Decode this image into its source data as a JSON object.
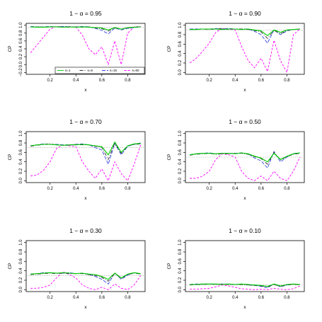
{
  "chart_data": [
    {
      "type": "line",
      "title": "1 − α = 0.95",
      "xlabel": "x",
      "ylabel": "CP",
      "xlim": [
        0.05,
        0.9
      ],
      "ylim": [
        -0.2,
        1.0
      ],
      "xticks": [
        "0.2",
        "0.4",
        "0.6",
        "0.8"
      ],
      "yticks": [
        "−0.2",
        "0.0",
        "0.2",
        "0.4",
        "0.6",
        "0.8",
        "1.0"
      ],
      "nominal": 0.95,
      "x": [
        0.05,
        0.1,
        0.15,
        0.2,
        0.25,
        0.3,
        0.35,
        0.4,
        0.45,
        0.5,
        0.55,
        0.6,
        0.65,
        0.7,
        0.75,
        0.8,
        0.85,
        0.9
      ],
      "series": [
        {
          "name": "s=1",
          "color": "#00cc00",
          "dash": "",
          "values": [
            0.96,
            0.95,
            0.95,
            0.96,
            0.96,
            0.95,
            0.96,
            0.95,
            0.96,
            0.95,
            0.94,
            0.93,
            0.88,
            0.94,
            0.9,
            0.94,
            0.95,
            0.96
          ]
        },
        {
          "name": "s=6",
          "color": "#333333",
          "dash": "5,2,1,2",
          "values": [
            0.96,
            0.96,
            0.95,
            0.96,
            0.96,
            0.96,
            0.95,
            0.96,
            0.95,
            0.96,
            0.93,
            0.91,
            0.85,
            0.93,
            0.9,
            0.93,
            0.95,
            0.96
          ]
        },
        {
          "name": "s=15",
          "color": "#3344dd",
          "dash": "5,2",
          "values": [
            0.97,
            0.96,
            0.96,
            0.97,
            0.96,
            0.97,
            0.96,
            0.96,
            0.97,
            0.96,
            0.92,
            0.87,
            0.78,
            0.93,
            0.88,
            0.92,
            0.94,
            0.96
          ]
        },
        {
          "name": "s=60",
          "color": "#ff00ff",
          "dash": "3,2",
          "values": [
            0.3,
            0.5,
            0.7,
            0.9,
            0.97,
            0.96,
            0.97,
            0.95,
            0.75,
            0.4,
            0.25,
            0.45,
            0.0,
            0.6,
            0.0,
            0.8,
            0.96,
            0.97
          ]
        }
      ],
      "legend": "bottom-right"
    },
    {
      "type": "line",
      "title": "1 − α = 0.90",
      "xlabel": "x",
      "ylabel": "CP",
      "xlim": [
        0.05,
        0.9
      ],
      "ylim": [
        0.0,
        1.0
      ],
      "xticks": [
        "0.2",
        "0.4",
        "0.6",
        "0.8"
      ],
      "yticks": [
        "0.0",
        "0.2",
        "0.4",
        "0.6",
        "0.8",
        "1.0"
      ],
      "nominal": 0.9,
      "x": [
        0.05,
        0.1,
        0.15,
        0.2,
        0.25,
        0.3,
        0.35,
        0.4,
        0.45,
        0.5,
        0.55,
        0.6,
        0.65,
        0.7,
        0.75,
        0.8,
        0.85,
        0.9
      ],
      "series": [
        {
          "name": "s=1",
          "color": "#00cc00",
          "dash": "",
          "values": [
            0.91,
            0.91,
            0.92,
            0.92,
            0.92,
            0.91,
            0.92,
            0.92,
            0.91,
            0.92,
            0.9,
            0.88,
            0.78,
            0.9,
            0.85,
            0.9,
            0.91,
            0.92
          ]
        },
        {
          "name": "s=6",
          "color": "#333333",
          "dash": "5,2,1,2",
          "values": [
            0.91,
            0.91,
            0.92,
            0.91,
            0.92,
            0.93,
            0.91,
            0.92,
            0.92,
            0.91,
            0.89,
            0.86,
            0.72,
            0.89,
            0.82,
            0.89,
            0.91,
            0.92
          ]
        },
        {
          "name": "s=15",
          "color": "#3344dd",
          "dash": "5,2",
          "values": [
            0.92,
            0.92,
            0.92,
            0.92,
            0.93,
            0.92,
            0.93,
            0.92,
            0.92,
            0.92,
            0.87,
            0.8,
            0.62,
            0.9,
            0.8,
            0.88,
            0.91,
            0.92
          ]
        },
        {
          "name": "s=60",
          "color": "#ff00ff",
          "dash": "3,2",
          "values": [
            0.2,
            0.3,
            0.45,
            0.62,
            0.85,
            0.93,
            0.92,
            0.9,
            0.55,
            0.25,
            0.1,
            0.3,
            0.02,
            0.68,
            0.25,
            0.0,
            0.8,
            0.92
          ]
        }
      ]
    },
    {
      "type": "line",
      "title": "1 − α = 0.70",
      "xlabel": "x",
      "ylabel": "CP",
      "xlim": [
        0.05,
        0.9
      ],
      "ylim": [
        0.0,
        1.0
      ],
      "xticks": [
        "0.2",
        "0.4",
        "0.6",
        "0.8"
      ],
      "yticks": [
        "0.0",
        "0.2",
        "0.4",
        "0.6",
        "0.8",
        "1.0"
      ],
      "nominal": 0.7,
      "x": [
        0.05,
        0.1,
        0.15,
        0.2,
        0.25,
        0.3,
        0.35,
        0.4,
        0.45,
        0.5,
        0.55,
        0.6,
        0.65,
        0.7,
        0.75,
        0.8,
        0.85,
        0.9
      ],
      "series": [
        {
          "name": "s=1",
          "color": "#00cc00",
          "dash": "",
          "values": [
            0.74,
            0.76,
            0.77,
            0.77,
            0.76,
            0.75,
            0.76,
            0.76,
            0.77,
            0.76,
            0.74,
            0.72,
            0.55,
            0.82,
            0.6,
            0.74,
            0.78,
            0.79
          ]
        },
        {
          "name": "s=6",
          "color": "#333333",
          "dash": "5,2,1,2",
          "values": [
            0.73,
            0.75,
            0.77,
            0.78,
            0.76,
            0.75,
            0.75,
            0.77,
            0.76,
            0.76,
            0.73,
            0.71,
            0.45,
            0.8,
            0.58,
            0.74,
            0.77,
            0.78
          ]
        },
        {
          "name": "s=15",
          "color": "#3344dd",
          "dash": "5,2",
          "values": [
            0.74,
            0.76,
            0.78,
            0.77,
            0.77,
            0.76,
            0.76,
            0.77,
            0.78,
            0.76,
            0.7,
            0.65,
            0.35,
            0.79,
            0.55,
            0.73,
            0.77,
            0.8
          ]
        },
        {
          "name": "s=60",
          "color": "#ff00ff",
          "dash": "3,2",
          "values": [
            0.1,
            0.12,
            0.22,
            0.4,
            0.68,
            0.76,
            0.74,
            0.72,
            0.4,
            0.2,
            0.05,
            0.25,
            0.0,
            0.4,
            0.15,
            0.0,
            0.35,
            0.76
          ]
        }
      ]
    },
    {
      "type": "line",
      "title": "1 − α = 0.50",
      "xlabel": "x",
      "ylabel": "CP",
      "xlim": [
        0.05,
        0.9
      ],
      "ylim": [
        0.0,
        1.0
      ],
      "xticks": [
        "0.2",
        "0.4",
        "0.6",
        "0.8"
      ],
      "yticks": [
        "0.0",
        "0.2",
        "0.4",
        "0.6",
        "0.8",
        "1.0"
      ],
      "nominal": 0.5,
      "x": [
        0.05,
        0.1,
        0.15,
        0.2,
        0.25,
        0.3,
        0.35,
        0.4,
        0.45,
        0.5,
        0.55,
        0.6,
        0.65,
        0.7,
        0.75,
        0.8,
        0.85,
        0.9
      ],
      "series": [
        {
          "name": "s=1",
          "color": "#00cc00",
          "dash": "",
          "values": [
            0.55,
            0.57,
            0.58,
            0.58,
            0.57,
            0.58,
            0.58,
            0.57,
            0.59,
            0.57,
            0.52,
            0.48,
            0.4,
            0.58,
            0.45,
            0.52,
            0.57,
            0.59
          ]
        },
        {
          "name": "s=6",
          "color": "#333333",
          "dash": "5,2,1,2",
          "values": [
            0.54,
            0.56,
            0.57,
            0.58,
            0.56,
            0.57,
            0.57,
            0.58,
            0.58,
            0.56,
            0.51,
            0.47,
            0.35,
            0.6,
            0.44,
            0.51,
            0.56,
            0.58
          ]
        },
        {
          "name": "s=15",
          "color": "#3344dd",
          "dash": "5,2",
          "values": [
            0.55,
            0.57,
            0.58,
            0.59,
            0.57,
            0.58,
            0.58,
            0.58,
            0.59,
            0.57,
            0.48,
            0.42,
            0.27,
            0.62,
            0.4,
            0.5,
            0.58,
            0.59
          ]
        },
        {
          "name": "s=60",
          "color": "#ff00ff",
          "dash": "3,2",
          "values": [
            0.05,
            0.05,
            0.1,
            0.2,
            0.45,
            0.57,
            0.55,
            0.5,
            0.2,
            0.05,
            0.0,
            0.1,
            0.0,
            0.2,
            0.05,
            0.0,
            0.2,
            0.5
          ]
        }
      ]
    },
    {
      "type": "line",
      "title": "1 − α = 0.30",
      "xlabel": "x",
      "ylabel": "CP",
      "xlim": [
        0.05,
        0.9
      ],
      "ylim": [
        0.0,
        1.0
      ],
      "xticks": [
        "0.2",
        "0.4",
        "0.6",
        "0.8"
      ],
      "yticks": [
        "0.0",
        "0.2",
        "0.4",
        "0.6",
        "0.8",
        "1.0"
      ],
      "nominal": 0.3,
      "x": [
        0.05,
        0.1,
        0.15,
        0.2,
        0.25,
        0.3,
        0.35,
        0.4,
        0.45,
        0.5,
        0.55,
        0.6,
        0.65,
        0.7,
        0.75,
        0.8,
        0.85,
        0.9
      ],
      "series": [
        {
          "name": "s=1",
          "color": "#00cc00",
          "dash": "",
          "values": [
            0.33,
            0.34,
            0.35,
            0.36,
            0.35,
            0.36,
            0.35,
            0.34,
            0.35,
            0.33,
            0.32,
            0.28,
            0.22,
            0.35,
            0.25,
            0.33,
            0.36,
            0.34
          ]
        },
        {
          "name": "s=6",
          "color": "#333333",
          "dash": "5,2,1,2",
          "values": [
            0.32,
            0.33,
            0.34,
            0.35,
            0.34,
            0.35,
            0.34,
            0.34,
            0.34,
            0.32,
            0.3,
            0.26,
            0.18,
            0.34,
            0.24,
            0.32,
            0.35,
            0.33
          ]
        },
        {
          "name": "s=15",
          "color": "#3344dd",
          "dash": "5,2",
          "values": [
            0.33,
            0.34,
            0.36,
            0.36,
            0.35,
            0.35,
            0.36,
            0.34,
            0.35,
            0.32,
            0.28,
            0.22,
            0.12,
            0.36,
            0.22,
            0.31,
            0.36,
            0.33
          ]
        },
        {
          "name": "s=60",
          "color": "#ff00ff",
          "dash": "3,2",
          "values": [
            0.03,
            0.03,
            0.05,
            0.1,
            0.25,
            0.38,
            0.32,
            0.25,
            0.1,
            0.03,
            0.0,
            0.05,
            0.0,
            0.12,
            0.03,
            0.0,
            0.1,
            0.3
          ]
        }
      ]
    },
    {
      "type": "line",
      "title": "1 − α = 0.10",
      "xlabel": "x",
      "ylabel": "CP",
      "xlim": [
        0.05,
        0.9
      ],
      "ylim": [
        0.0,
        1.0
      ],
      "xticks": [
        "0.2",
        "0.4",
        "0.6",
        "0.8"
      ],
      "yticks": [
        "0.0",
        "0.2",
        "0.4",
        "0.6",
        "0.8",
        "1.0"
      ],
      "nominal": 0.1,
      "x": [
        0.05,
        0.1,
        0.15,
        0.2,
        0.25,
        0.3,
        0.35,
        0.4,
        0.45,
        0.5,
        0.55,
        0.6,
        0.65,
        0.7,
        0.75,
        0.8,
        0.85,
        0.9
      ],
      "series": [
        {
          "name": "s=1",
          "color": "#00cc00",
          "dash": "",
          "values": [
            0.11,
            0.11,
            0.12,
            0.12,
            0.12,
            0.11,
            0.12,
            0.11,
            0.12,
            0.11,
            0.1,
            0.09,
            0.07,
            0.12,
            0.08,
            0.11,
            0.12,
            0.11
          ]
        },
        {
          "name": "s=6",
          "color": "#333333",
          "dash": "5,2,1,2",
          "values": [
            0.1,
            0.11,
            0.11,
            0.12,
            0.11,
            0.12,
            0.11,
            0.11,
            0.11,
            0.1,
            0.09,
            0.08,
            0.06,
            0.11,
            0.07,
            0.1,
            0.11,
            0.11
          ]
        },
        {
          "name": "s=15",
          "color": "#3344dd",
          "dash": "5,2",
          "values": [
            0.11,
            0.12,
            0.12,
            0.12,
            0.12,
            0.12,
            0.12,
            0.11,
            0.12,
            0.1,
            0.09,
            0.07,
            0.04,
            0.12,
            0.06,
            0.1,
            0.12,
            0.11
          ]
        },
        {
          "name": "s=60",
          "color": "#ff00ff",
          "dash": "3,2",
          "values": [
            0.01,
            0.01,
            0.02,
            0.03,
            0.06,
            0.1,
            0.08,
            0.05,
            0.02,
            0.01,
            0.0,
            0.01,
            0.0,
            0.03,
            0.01,
            0.0,
            0.02,
            0.08
          ]
        }
      ]
    }
  ]
}
